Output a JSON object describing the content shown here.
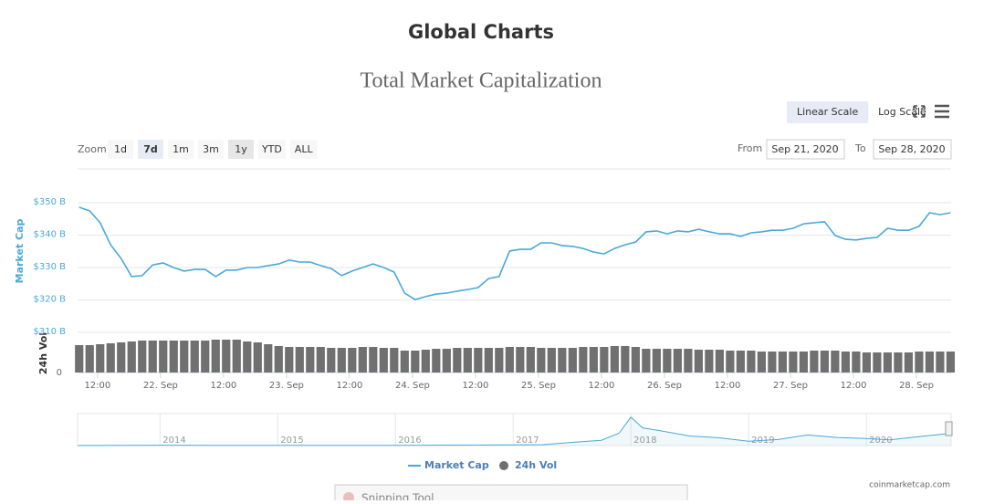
{
  "page": {
    "heading": "Global Charts",
    "scale_buttons": [
      "Linear Scale",
      "Log Scale"
    ],
    "active_scale": 0,
    "zoom": {
      "label": "Zoom",
      "buttons": [
        "1d",
        "7d",
        "1m",
        "3m",
        "1y",
        "YTD",
        "ALL"
      ],
      "selected": 1,
      "hovered": 4
    },
    "range": {
      "from_label": "From",
      "from": "Sep 21, 2020",
      "to_label": "To",
      "to": "Sep 28, 2020"
    },
    "credit": "coinmarketcap.com",
    "overlay_window": "Snipping Tool"
  },
  "chart_data": {
    "type": "line",
    "title": "Total Market Capitalization",
    "ylabel": "Market Cap",
    "y2label": "24h Vol",
    "x": [
      8.5,
      10.5,
      12.5,
      14.5,
      16.5,
      18.5,
      20.5,
      22.5,
      24.5,
      26.5,
      28.5,
      30.5,
      32.5,
      34.5,
      36.5,
      38.5,
      40.5,
      42.5,
      44.5,
      46.5,
      48.5,
      50.5,
      52.5,
      54.5,
      56.5,
      58.5,
      60.5,
      62.5,
      64.5,
      66.5,
      68.5,
      70.5,
      72.5,
      74.5,
      76.5,
      78.5,
      80.5,
      82.5,
      84.5,
      86.5,
      88.5,
      90.5,
      92.5,
      94.5,
      96.5,
      98.5,
      100.5,
      102.5,
      104.5,
      106.5,
      108.5,
      110.5,
      112.5,
      114.5,
      116.5,
      118.5,
      120.5,
      122.5,
      124.5,
      126.5,
      128.5,
      130.5,
      132.5,
      134.5,
      136.5,
      138.5,
      140.5,
      142.5,
      144.5,
      146.5,
      148.5,
      150.5,
      152.5,
      154.5,
      156.5,
      158.5,
      160.5,
      162.5,
      164.5,
      166.5,
      168.5,
      170.5,
      172.5,
      174.5
    ],
    "xlim": [
      8.2,
      174.6
    ],
    "xticks": [
      {
        "value": 12,
        "label": "12:00"
      },
      {
        "value": 24,
        "label": "22. Sep"
      },
      {
        "value": 36,
        "label": "12:00"
      },
      {
        "value": 48,
        "label": "23. Sep"
      },
      {
        "value": 60,
        "label": "12:00"
      },
      {
        "value": 72,
        "label": "24. Sep"
      },
      {
        "value": 84,
        "label": "12:00"
      },
      {
        "value": 96,
        "label": "25. Sep"
      },
      {
        "value": 108,
        "label": "12:00"
      },
      {
        "value": 120,
        "label": "26. Sep"
      },
      {
        "value": 132,
        "label": "12:00"
      },
      {
        "value": 144,
        "label": "27. Sep"
      },
      {
        "value": 156,
        "label": "12:00"
      },
      {
        "value": 168,
        "label": "28. Sep"
      }
    ],
    "ylim": [
      310,
      360
    ],
    "yticks": [
      {
        "value": 310,
        "label": "$310 B"
      },
      {
        "value": 320,
        "label": "$320 B"
      },
      {
        "value": 330,
        "label": "$330 B"
      },
      {
        "value": 340,
        "label": "$340 B"
      },
      {
        "value": 350,
        "label": "$350 B"
      }
    ],
    "y2lim": [
      0,
      40
    ],
    "y2ticks": [
      0
    ],
    "grid": true,
    "series": [
      {
        "name": "Market Cap",
        "color": "#4aa8d8",
        "values": [
          348.6,
          347.5,
          343.8,
          337,
          332.8,
          327.2,
          327.5,
          330.8,
          331.4,
          330,
          328.9,
          329.4,
          329.4,
          327.2,
          329.2,
          329.2,
          330,
          330,
          330.6,
          331.1,
          332.3,
          331.7,
          331.7,
          330.6,
          329.7,
          327.5,
          328.9,
          330,
          331.1,
          330,
          328.6,
          322.1,
          320.1,
          321,
          321.8,
          322.1,
          322.7,
          323.2,
          323.8,
          326.6,
          327.2,
          335.1,
          335.6,
          335.6,
          337.6,
          337.6,
          336.8,
          336.5,
          335.9,
          334.8,
          334.2,
          335.9,
          337,
          337.9,
          341,
          341.3,
          340.4,
          341.3,
          341,
          341.8,
          341,
          340.4,
          340.4,
          339.6,
          340.7,
          341,
          341.5,
          341.5,
          342.1,
          343.5,
          343.8,
          344.1,
          339.9,
          338.7,
          338.5,
          339,
          339.3,
          342.1,
          341.5,
          341.5,
          342.7,
          346.9,
          346.3,
          346.9
        ]
      },
      {
        "name": "24h Vol",
        "color": "#707070",
        "axis": "y2",
        "values": [
          30,
          30,
          31,
          32,
          33,
          34,
          35,
          35,
          35,
          35,
          35,
          35,
          35,
          36,
          36,
          36,
          34,
          33,
          31,
          29,
          28,
          28,
          28,
          28,
          27,
          27,
          27,
          28,
          28,
          27,
          27,
          24,
          24,
          25,
          26,
          26,
          27,
          27,
          27,
          27,
          27,
          28,
          28,
          28,
          27,
          27,
          27,
          27,
          28,
          28,
          28,
          29,
          29,
          28,
          26,
          26,
          26,
          26,
          26,
          25,
          25,
          25,
          24,
          24,
          24,
          23,
          23,
          23,
          23,
          23,
          24,
          24,
          24,
          23,
          23,
          22,
          22,
          22,
          22,
          22,
          23,
          23,
          23,
          23
        ]
      }
    ],
    "navigator": {
      "x": [
        2013.3,
        2014,
        2014.5,
        2015,
        2015.5,
        2016,
        2016.5,
        2017,
        2017.25,
        2017.5,
        2017.75,
        2017.9,
        2018,
        2018.1,
        2018.25,
        2018.5,
        2018.75,
        2019,
        2019.25,
        2019.5,
        2019.75,
        2020,
        2020.2,
        2020.5,
        2020.72
      ],
      "values": [
        2,
        10,
        8,
        5,
        4,
        7,
        12,
        18,
        25,
        90,
        150,
        350,
        800,
        500,
        420,
        270,
        220,
        120,
        170,
        300,
        230,
        200,
        160,
        270,
        345
      ],
      "xlim": [
        2013.3,
        2020.72
      ],
      "ylim": [
        0,
        850
      ],
      "xticks": [
        2014,
        2015,
        2016,
        2017,
        2018,
        2019,
        2020
      ]
    }
  }
}
